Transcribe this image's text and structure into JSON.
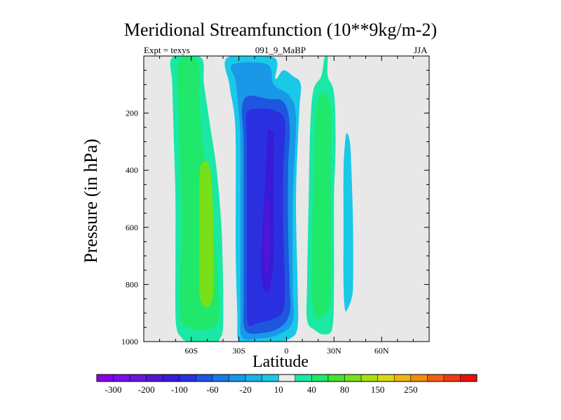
{
  "chart_data": {
    "type": "contour",
    "title": "Meridional Streamfunction (10**9kg/m-2)",
    "left_label": "Expt = texys",
    "center_label": "091_9_MaBP",
    "right_label": "JJA",
    "xlabel": "Latitude",
    "ylabel": "Pressure (in hPa)",
    "xlim": [
      -90,
      90
    ],
    "ylim": [
      1000,
      0
    ],
    "y_reversed": true,
    "x_ticks": [
      {
        "value": -60,
        "label": "60S"
      },
      {
        "value": -30,
        "label": "30S"
      },
      {
        "value": 0,
        "label": "0"
      },
      {
        "value": 30,
        "label": "30N"
      },
      {
        "value": 60,
        "label": "60N"
      }
    ],
    "y_ticks": [
      {
        "value": 200,
        "label": "200"
      },
      {
        "value": 400,
        "label": "400"
      },
      {
        "value": 600,
        "label": "600"
      },
      {
        "value": 800,
        "label": "800"
      },
      {
        "value": 1000,
        "label": "1000"
      }
    ],
    "background_color": "#e8e8e8",
    "colorbar": {
      "colors": [
        "#8a00e6",
        "#7a10e8",
        "#6a16e0",
        "#5414d8",
        "#3a1ad8",
        "#2a30e0",
        "#1e56e0",
        "#1a78e6",
        "#1a98e8",
        "#1cb0e8",
        "#1ac8e8",
        "#ebebeb",
        "#1ae8a4",
        "#20e86a",
        "#48e030",
        "#78e018",
        "#a8e010",
        "#d8d810",
        "#f0b410",
        "#f08c10",
        "#f06010",
        "#f03a10",
        "#e81010"
      ],
      "labels": [
        {
          "after": 1,
          "text": "-300"
        },
        {
          "after": 3,
          "text": "-200"
        },
        {
          "after": 5,
          "text": "-100"
        },
        {
          "after": 7,
          "text": "-60"
        },
        {
          "after": 9,
          "text": "-20"
        },
        {
          "after": 11,
          "text": "10"
        },
        {
          "after": 13,
          "text": "40"
        },
        {
          "after": 15,
          "text": "80"
        },
        {
          "after": 17,
          "text": "150"
        },
        {
          "after": 19,
          "text": "250"
        }
      ]
    },
    "cells": [
      {
        "name": "southern-positive-cell",
        "sign": "positive",
        "layers": [
          {
            "level": 10,
            "color": "#1ae8a4",
            "points": [
              [
                -62,
                1000
              ],
              [
                -67,
                980
              ],
              [
                -69,
                960
              ],
              [
                -70,
                900
              ],
              [
                -70,
                700
              ],
              [
                -70,
                500
              ],
              [
                -71,
                300
              ],
              [
                -72,
                100
              ],
              [
                -72,
                5
              ],
              [
                -54,
                5
              ],
              [
                -52,
                100
              ],
              [
                -48,
                250
              ],
              [
                -44,
                400
              ],
              [
                -41,
                600
              ],
              [
                -40,
                800
              ],
              [
                -40,
                950
              ],
              [
                -42,
                990
              ],
              [
                -45,
                1000
              ]
            ]
          },
          {
            "level": 20,
            "color": "#20e86a",
            "points": [
              [
                -55,
                960
              ],
              [
                -65,
                940
              ],
              [
                -67,
                900
              ],
              [
                -67,
                750
              ],
              [
                -66,
                600
              ],
              [
                -67,
                400
              ],
              [
                -68,
                200
              ],
              [
                -68,
                20
              ],
              [
                -56,
                20
              ],
              [
                -55,
                150
              ],
              [
                -53,
                300
              ],
              [
                -49,
                450
              ],
              [
                -45,
                650
              ],
              [
                -43,
                800
              ],
              [
                -43,
                920
              ],
              [
                -48,
                955
              ]
            ]
          },
          {
            "level": 40,
            "color": "#78e018",
            "points": [
              [
                -51,
                880
              ],
              [
                -54,
                860
              ],
              [
                -55,
                800
              ],
              [
                -55,
                600
              ],
              [
                -55,
                460
              ],
              [
                -54,
                385
              ],
              [
                -51,
                370
              ],
              [
                -49,
                380
              ],
              [
                -47,
                450
              ],
              [
                -46,
                650
              ],
              [
                -46,
                820
              ],
              [
                -48,
                870
              ]
            ]
          }
        ]
      },
      {
        "name": "equatorial-negative-cell",
        "sign": "negative",
        "layers": [
          {
            "level": -10,
            "color": "#1ac8e8",
            "points": [
              [
                -30,
                1000
              ],
              [
                -31,
                900
              ],
              [
                -32,
                700
              ],
              [
                -32,
                500
              ],
              [
                -32,
                300
              ],
              [
                -33,
                200
              ],
              [
                -36,
                100
              ],
              [
                -37,
                5
              ],
              [
                -8,
                5
              ],
              [
                -7,
                80
              ],
              [
                -2,
                50
              ],
              [
                4,
                70
              ],
              [
                9,
                100
              ],
              [
                8,
                200
              ],
              [
                6,
                500
              ],
              [
                7,
                800
              ],
              [
                7,
                950
              ],
              [
                2,
                990
              ],
              [
                -7,
                1005
              ],
              [
                -20,
                1005
              ]
            ]
          },
          {
            "level": -20,
            "color": "#1a98e8",
            "points": [
              [
                -28,
                985
              ],
              [
                -29,
                900
              ],
              [
                -29,
                700
              ],
              [
                -29,
                500
              ],
              [
                -29,
                300
              ],
              [
                -30,
                200
              ],
              [
                -32,
                90
              ],
              [
                -34,
                30
              ],
              [
                -12,
                30
              ],
              [
                -8,
                100
              ],
              [
                2,
                140
              ],
              [
                6,
                220
              ],
              [
                4,
                500
              ],
              [
                4,
                800
              ],
              [
                4,
                930
              ],
              [
                -5,
                975
              ],
              [
                -18,
                990
              ]
            ]
          },
          {
            "level": -40,
            "color": "#1e56e0",
            "points": [
              [
                -26,
                960
              ],
              [
                -27,
                850
              ],
              [
                -27,
                700
              ],
              [
                -27,
                500
              ],
              [
                -27,
                300
              ],
              [
                -28,
                180
              ],
              [
                -24,
                140
              ],
              [
                -12,
                150
              ],
              [
                -2,
                160
              ],
              [
                2,
                240
              ],
              [
                1,
                400
              ],
              [
                1,
                600
              ],
              [
                2,
                800
              ],
              [
                2,
                900
              ],
              [
                -4,
                950
              ],
              [
                -15,
                970
              ]
            ]
          },
          {
            "level": -60,
            "color": "#2a30e0",
            "points": [
              [
                -24,
                940
              ],
              [
                -25,
                850
              ],
              [
                -25,
                700
              ],
              [
                -25,
                500
              ],
              [
                -25,
                300
              ],
              [
                -25,
                200
              ],
              [
                -18,
                185
              ],
              [
                -8,
                190
              ],
              [
                -1,
                230
              ],
              [
                -2,
                400
              ],
              [
                -2,
                600
              ],
              [
                -1,
                800
              ],
              [
                -2,
                890
              ],
              [
                -8,
                920
              ],
              [
                -18,
                935
              ]
            ]
          },
          {
            "level": -80,
            "color": "#3a1ad8",
            "points": [
              [
                -14,
                820
              ],
              [
                -16,
                760
              ],
              [
                -16,
                700
              ],
              [
                -15,
                600
              ],
              [
                -14,
                500
              ],
              [
                -13,
                400
              ],
              [
                -12,
                270
              ],
              [
                -10,
                260
              ],
              [
                -8,
                280
              ],
              [
                -8,
                400
              ],
              [
                -8,
                550
              ],
              [
                -8,
                700
              ],
              [
                -10,
                800
              ],
              [
                -12,
                825
              ]
            ]
          },
          {
            "level": -100,
            "color": "#5414d8",
            "points": [
              [
                -13,
                760
              ],
              [
                -14,
                700
              ],
              [
                -14,
                600
              ],
              [
                -13,
                520
              ],
              [
                -12,
                500
              ],
              [
                -11,
                520
              ],
              [
                -11,
                600
              ],
              [
                -11,
                700
              ],
              [
                -12,
                760
              ]
            ]
          }
        ]
      },
      {
        "name": "northern-positive-cell",
        "sign": "positive",
        "layers": [
          {
            "level": 10,
            "color": "#1ae8a4",
            "points": [
              [
                18,
                960
              ],
              [
                13,
                925
              ],
              [
                13,
                800
              ],
              [
                14,
                500
              ],
              [
                15,
                250
              ],
              [
                17,
                120
              ],
              [
                22,
                70
              ],
              [
                24,
                5
              ],
              [
                26,
                5
              ],
              [
                26,
                70
              ],
              [
                30,
                130
              ],
              [
                31,
                300
              ],
              [
                30,
                500
              ],
              [
                30,
                800
              ],
              [
                29,
                950
              ],
              [
                24,
                975
              ]
            ]
          },
          {
            "level": 20,
            "color": "#20e86a",
            "points": [
              [
                19,
                920
              ],
              [
                16,
                850
              ],
              [
                16,
                700
              ],
              [
                17,
                450
              ],
              [
                18,
                250
              ],
              [
                20,
                150
              ],
              [
                24,
                130
              ],
              [
                28,
                180
              ],
              [
                28,
                300
              ],
              [
                28,
                500
              ],
              [
                28,
                800
              ],
              [
                27,
                880
              ],
              [
                23,
                910
              ]
            ]
          }
        ]
      },
      {
        "name": "northern-negative-cell",
        "sign": "negative",
        "layers": [
          {
            "level": -10,
            "color": "#1ac8e8",
            "points": [
              [
                37,
                890
              ],
              [
                36,
                800
              ],
              [
                36,
                600
              ],
              [
                36,
                400
              ],
              [
                37,
                300
              ],
              [
                38,
                270
              ],
              [
                40,
                300
              ],
              [
                41,
                400
              ],
              [
                42,
                600
              ],
              [
                42,
                800
              ],
              [
                41,
                850
              ],
              [
                39,
                880
              ]
            ]
          }
        ]
      }
    ]
  }
}
